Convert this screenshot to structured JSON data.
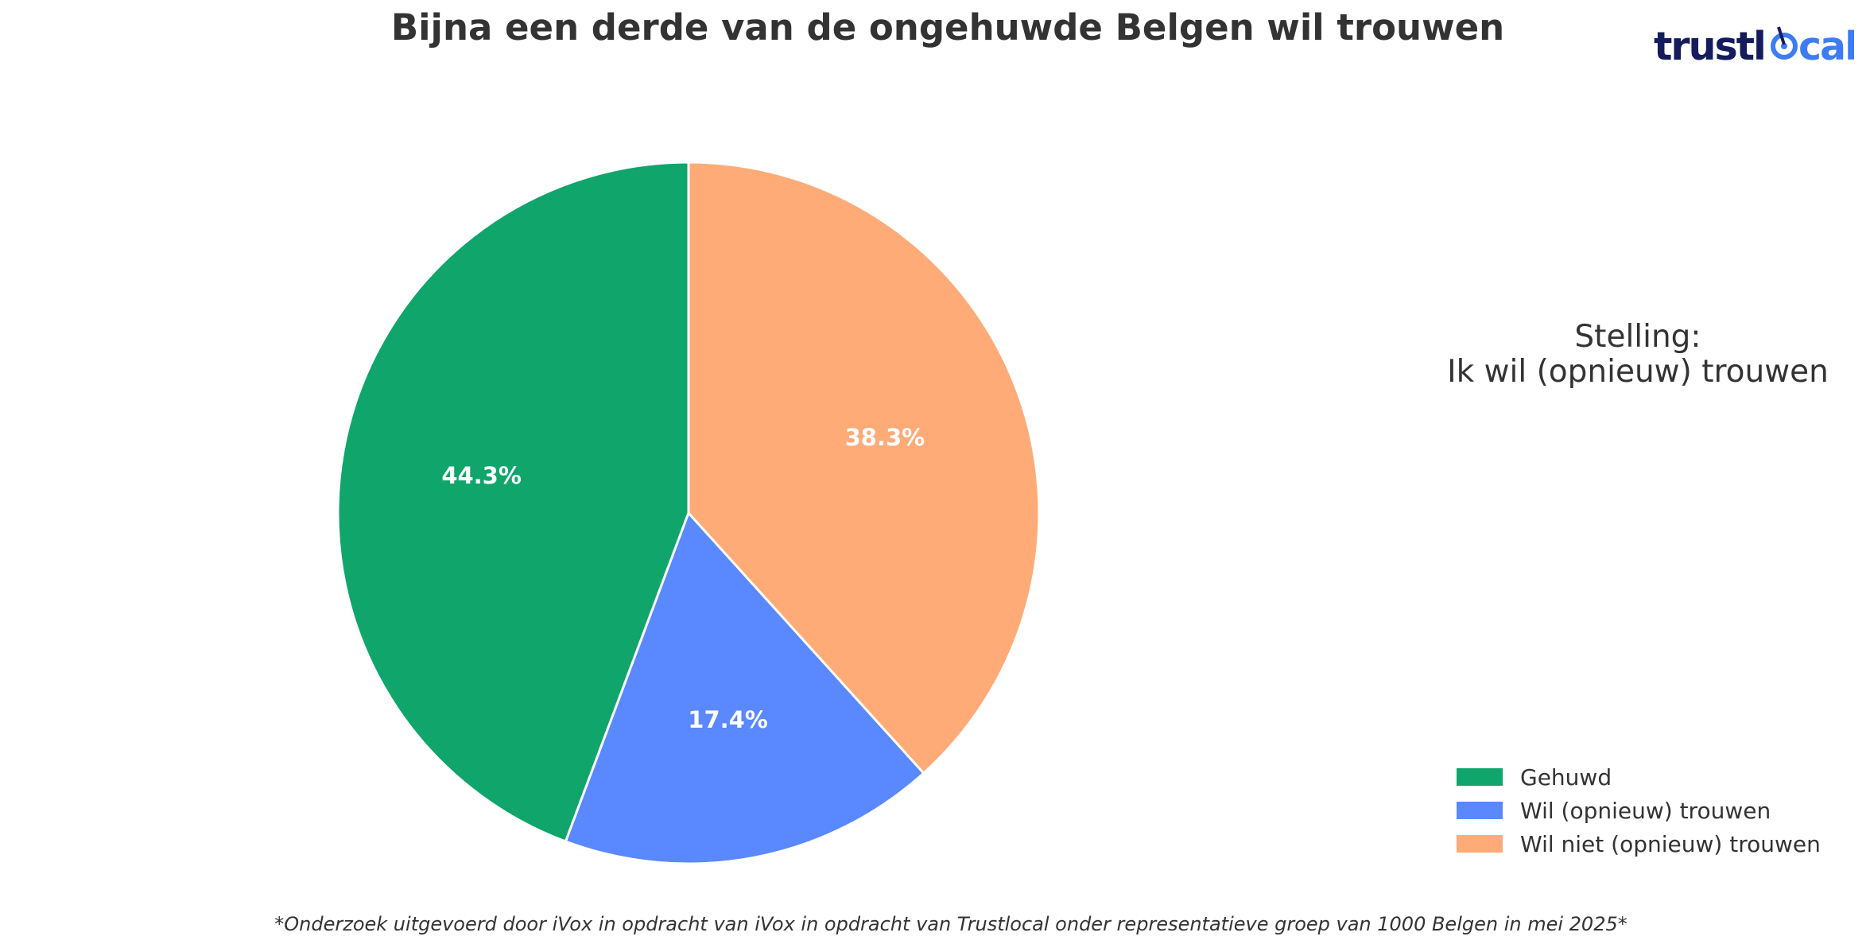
{
  "title": "Bijna een derde van de ongehuwde Belgen wil trouwen",
  "logo": {
    "text": "trustlocal",
    "icon": "target-icon",
    "colors": {
      "trust": "#141c5e",
      "local": "#3d7cf4"
    }
  },
  "side_text": {
    "line1": "Stelling:",
    "line2": "Ik wil (opnieuw) trouwen"
  },
  "footnote": "*Onderzoek uitgevoerd door iVox in opdracht van iVox in opdracht van Trustlocal onder representatieve groep van 1000 Belgen in mei 2025*",
  "chart_data": {
    "type": "pie",
    "title": "Bijna een derde van de ongehuwde Belgen wil trouwen",
    "start_angle": "12 o'clock",
    "direction": "counterclockwise",
    "slices": [
      {
        "label": "Gehuwd",
        "value": 44.3,
        "display": "44.3%",
        "color": "#10a56b"
      },
      {
        "label": "Wil (opnieuw) trouwen",
        "value": 17.4,
        "display": "17.4%",
        "color": "#5988ff"
      },
      {
        "label": "Wil niet (opnieuw) trouwen",
        "value": 38.3,
        "display": "38.3%",
        "color": "#ffab78"
      }
    ],
    "legend_position": "bottom-right"
  }
}
